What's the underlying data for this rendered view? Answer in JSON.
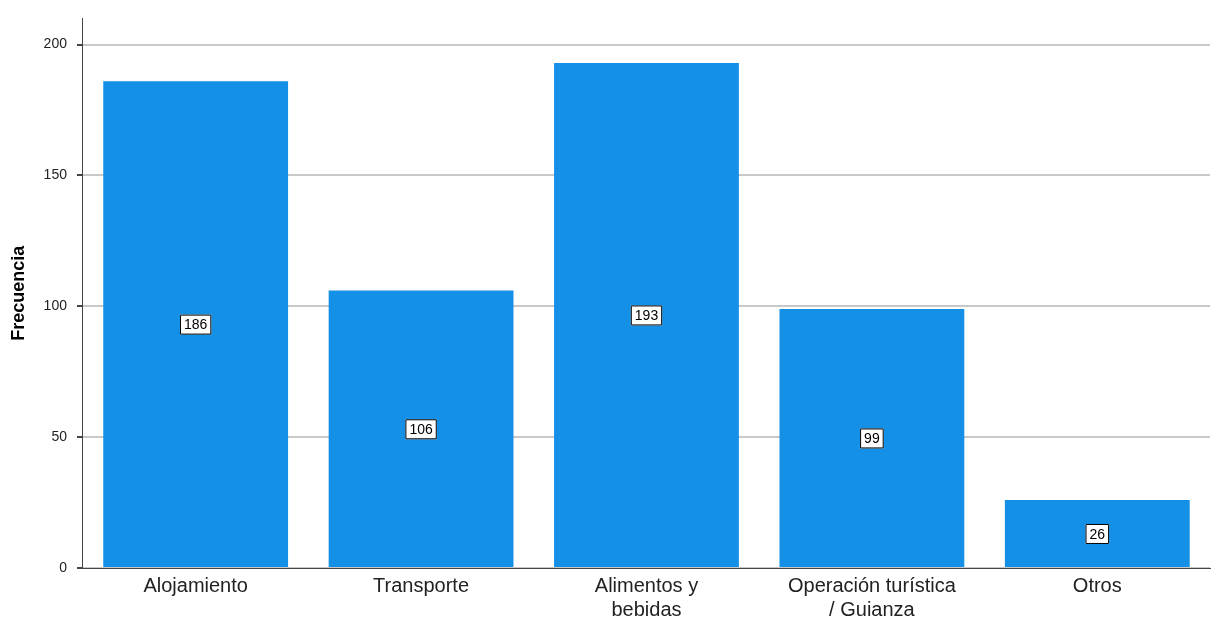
{
  "chart_data": {
    "type": "bar",
    "ylabel": "Frecuencia",
    "categories": [
      "Alojamiento",
      "Transporte",
      "Alimentos y\nbebidas",
      "Operación turística\n/ Guianza",
      "Otros"
    ],
    "values": [
      186,
      106,
      193,
      99,
      26
    ],
    "color": "#1490e6",
    "ylim": [
      0,
      210
    ],
    "yticks": [
      0,
      50,
      100,
      150,
      200
    ],
    "grid": "y",
    "data_labels": true
  }
}
